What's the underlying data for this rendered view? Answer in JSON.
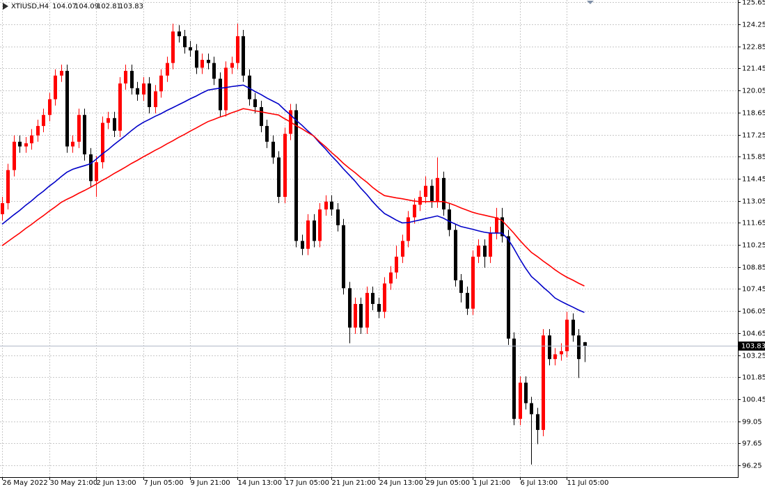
{
  "chart_data": {
    "type": "candlestick",
    "symbol": "XTIUSD,H4",
    "up_color": "#ff0000",
    "down_color": "#000000",
    "grid": true,
    "ylim": [
      95.5,
      125.8
    ],
    "yticks": [
      {
        "value": 125.65,
        "label": "125.65"
      },
      {
        "value": 124.25,
        "label": "124.25"
      },
      {
        "value": 122.85,
        "label": "122.85"
      },
      {
        "value": 121.45,
        "label": "121.45"
      },
      {
        "value": 120.05,
        "label": "120.05"
      },
      {
        "value": 118.65,
        "label": "118.65"
      },
      {
        "value": 117.25,
        "label": "117.25"
      },
      {
        "value": 115.85,
        "label": "115.85"
      },
      {
        "value": 114.45,
        "label": "114.45"
      },
      {
        "value": 113.05,
        "label": "113.05"
      },
      {
        "value": 111.65,
        "label": "111.65"
      },
      {
        "value": 110.25,
        "label": "110.25"
      },
      {
        "value": 108.85,
        "label": "108.85"
      },
      {
        "value": 107.45,
        "label": "107.45"
      },
      {
        "value": 106.05,
        "label": "106.05"
      },
      {
        "value": 104.65,
        "label": "104.65"
      },
      {
        "value": 103.25,
        "label": "103.25"
      },
      {
        "value": 101.85,
        "label": "101.85"
      },
      {
        "value": 100.45,
        "label": "100.45"
      },
      {
        "value": 99.05,
        "label": "99.05"
      },
      {
        "value": 97.65,
        "label": "97.65"
      },
      {
        "value": 96.25,
        "label": "96.25"
      }
    ],
    "categories": [
      "26 May 2022",
      null,
      null,
      null,
      null,
      null,
      null,
      null,
      "30 May 21:00",
      null,
      null,
      null,
      null,
      null,
      null,
      null,
      "2 Jun 13:00",
      null,
      null,
      null,
      null,
      null,
      null,
      null,
      "7 Jun 05:00",
      null,
      null,
      null,
      null,
      null,
      null,
      null,
      "9 Jun 21:00",
      null,
      null,
      null,
      null,
      null,
      null,
      null,
      "14 Jun 13:00",
      null,
      null,
      null,
      null,
      null,
      null,
      null,
      "17 Jun 05:00",
      null,
      null,
      null,
      null,
      null,
      null,
      null,
      "21 Jun 21:00",
      null,
      null,
      null,
      null,
      null,
      null,
      null,
      "24 Jun 13:00",
      null,
      null,
      null,
      null,
      null,
      null,
      null,
      "29 Jun 05:00",
      null,
      null,
      null,
      null,
      null,
      null,
      null,
      "1 Jul 21:00",
      null,
      null,
      null,
      null,
      null,
      null,
      null,
      "6 Jul 13:00",
      null,
      null,
      null,
      null,
      null,
      null,
      null,
      "11 Jul 05:00",
      null,
      null,
      null
    ],
    "open": [
      112.2,
      112.9,
      115.0,
      116.8,
      116.5,
      116.7,
      117.2,
      117.8,
      118.5,
      119.5,
      121.0,
      121.3,
      116.5,
      116.8,
      118.5,
      116.0,
      114.3,
      115.5,
      118.0,
      118.3,
      117.5,
      120.5,
      121.3,
      120.2,
      119.8,
      120.5,
      119.0,
      120.0,
      121.0,
      121.8,
      123.8,
      123.5,
      122.8,
      122.6,
      121.5,
      122.0,
      121.8,
      120.8,
      118.8,
      121.5,
      121.8,
      123.5,
      121.0,
      119.5,
      119.0,
      117.8,
      116.8,
      115.8,
      113.3,
      117.3,
      118.8,
      110.5,
      110.0,
      111.8,
      110.5,
      112.5,
      113.0,
      112.5,
      111.5,
      107.5,
      105.0,
      106.5,
      105.0,
      107.2,
      106.5,
      106.0,
      107.8,
      108.5,
      109.5,
      110.5,
      112.0,
      112.8,
      113.3,
      114.0,
      113.0,
      114.5,
      112.5,
      111.2,
      108.0,
      107.2,
      106.2,
      109.5,
      110.2,
      109.5,
      111.0,
      112.0,
      110.8,
      104.3,
      99.2,
      101.5,
      100.2,
      99.5,
      98.5,
      104.5,
      103.0,
      103.3,
      103.5,
      105.5,
      104.5,
      104.07
    ],
    "high": [
      113.3,
      115.4,
      117.2,
      117.2,
      117.1,
      117.6,
      118.2,
      118.9,
      119.9,
      121.4,
      121.7,
      121.7,
      117.2,
      118.9,
      118.9,
      116.4,
      115.9,
      118.4,
      118.7,
      118.7,
      120.9,
      121.7,
      121.7,
      120.6,
      120.9,
      120.9,
      120.4,
      121.4,
      122.2,
      124.3,
      124.2,
      123.9,
      123.2,
      123.0,
      122.4,
      122.4,
      122.2,
      121.2,
      121.9,
      122.2,
      124.3,
      123.9,
      121.4,
      119.9,
      119.4,
      118.2,
      117.2,
      116.2,
      117.7,
      119.2,
      119.2,
      110.9,
      112.2,
      112.2,
      112.9,
      113.4,
      113.4,
      112.9,
      111.9,
      107.9,
      106.9,
      106.9,
      107.6,
      107.6,
      106.9,
      108.2,
      108.9,
      110.2,
      110.9,
      112.4,
      113.2,
      113.7,
      114.6,
      114.4,
      115.8,
      114.9,
      112.9,
      111.6,
      108.4,
      107.6,
      109.9,
      110.6,
      110.6,
      111.4,
      112.6,
      112.6,
      111.2,
      104.7,
      101.9,
      101.9,
      100.6,
      99.9,
      104.9,
      104.9,
      103.7,
      104.0,
      106.0,
      105.9,
      104.9,
      104.09
    ],
    "low": [
      111.8,
      112.5,
      114.6,
      116.1,
      116.1,
      116.3,
      116.8,
      117.4,
      118.1,
      119.1,
      120.6,
      116.1,
      116.1,
      116.4,
      115.6,
      113.9,
      113.3,
      115.1,
      117.6,
      117.1,
      117.1,
      120.1,
      119.8,
      119.4,
      119.4,
      118.6,
      118.6,
      119.6,
      120.6,
      121.4,
      123.1,
      122.4,
      122.2,
      121.1,
      121.1,
      121.4,
      120.4,
      118.4,
      118.4,
      121.1,
      121.4,
      120.6,
      119.1,
      118.6,
      117.4,
      116.4,
      115.4,
      112.9,
      112.9,
      116.9,
      110.1,
      109.6,
      109.6,
      110.1,
      110.1,
      112.1,
      112.1,
      111.1,
      107.1,
      104.0,
      104.6,
      104.6,
      104.6,
      106.1,
      105.6,
      105.6,
      107.4,
      108.1,
      109.1,
      110.1,
      111.6,
      112.4,
      112.9,
      112.6,
      112.6,
      112.1,
      110.8,
      107.6,
      106.6,
      105.8,
      105.8,
      109.1,
      108.8,
      109.1,
      110.6,
      110.4,
      103.9,
      98.8,
      98.8,
      99.8,
      96.3,
      97.6,
      98.1,
      102.6,
      102.6,
      102.9,
      103.1,
      104.1,
      101.8,
      102.81
    ],
    "close": [
      112.9,
      115.0,
      116.8,
      116.5,
      116.7,
      117.2,
      117.8,
      118.5,
      119.5,
      121.0,
      121.3,
      116.5,
      116.8,
      118.5,
      116.0,
      114.3,
      115.5,
      118.0,
      118.3,
      117.5,
      120.5,
      121.3,
      120.2,
      119.8,
      120.5,
      119.0,
      120.0,
      121.0,
      121.8,
      123.8,
      123.5,
      122.8,
      122.6,
      121.5,
      122.0,
      121.8,
      120.8,
      118.8,
      121.5,
      121.8,
      123.5,
      121.0,
      119.5,
      119.0,
      117.8,
      116.8,
      115.8,
      113.3,
      117.3,
      118.8,
      110.5,
      110.0,
      111.8,
      110.5,
      112.5,
      113.0,
      112.5,
      111.5,
      107.5,
      105.0,
      106.5,
      105.0,
      107.2,
      106.5,
      106.0,
      107.8,
      108.5,
      109.5,
      110.5,
      112.0,
      112.8,
      113.3,
      114.0,
      113.0,
      114.5,
      112.5,
      111.2,
      108.0,
      107.2,
      106.2,
      109.5,
      110.2,
      109.5,
      111.0,
      112.0,
      110.8,
      104.3,
      99.2,
      101.5,
      100.2,
      99.5,
      98.5,
      104.5,
      103.0,
      103.3,
      103.5,
      105.5,
      104.5,
      103.0,
      103.83
    ],
    "series": [
      {
        "color": "#0000c8",
        "values": [
          111.56,
          111.86,
          112.16,
          112.44,
          112.76,
          113.05,
          113.37,
          113.65,
          113.97,
          114.25,
          114.57,
          114.86,
          115.05,
          115.17,
          115.28,
          115.4,
          115.69,
          116.01,
          116.29,
          116.61,
          116.9,
          117.19,
          117.51,
          117.79,
          118.03,
          118.21,
          118.41,
          118.58,
          118.78,
          118.96,
          119.15,
          119.33,
          119.53,
          119.7,
          119.9,
          120.08,
          120.14,
          120.2,
          120.24,
          120.3,
          120.35,
          120.4,
          120.21,
          119.99,
          119.8,
          119.58,
          119.39,
          119.2,
          118.84,
          118.52,
          118.16,
          117.84,
          117.48,
          117.15,
          116.72,
          116.34,
          115.9,
          115.52,
          115.09,
          114.7,
          114.3,
          113.85,
          113.45,
          113.0,
          112.6,
          112.24,
          112.04,
          111.83,
          111.65,
          111.66,
          111.75,
          111.83,
          111.92,
          112.0,
          112.09,
          111.95,
          111.75,
          111.58,
          111.42,
          111.33,
          111.24,
          111.14,
          111.05,
          111.0,
          111.0,
          111.0,
          110.63,
          110.03,
          109.37,
          108.77,
          108.24,
          107.92,
          107.56,
          107.24,
          106.88,
          106.67,
          106.48,
          106.31,
          106.12,
          105.96
        ]
      },
      {
        "color": "#ff0000",
        "values": [
          110.2,
          110.47,
          110.74,
          111.0,
          111.29,
          111.55,
          111.84,
          112.1,
          112.39,
          112.65,
          112.94,
          113.14,
          113.32,
          113.52,
          113.7,
          113.9,
          114.11,
          114.34,
          114.54,
          114.77,
          114.98,
          115.19,
          115.42,
          115.62,
          115.84,
          116.04,
          116.25,
          116.44,
          116.66,
          116.85,
          117.07,
          117.26,
          117.48,
          117.67,
          117.88,
          118.08,
          118.21,
          118.36,
          118.48,
          118.63,
          118.76,
          118.9,
          118.84,
          118.76,
          118.7,
          118.63,
          118.56,
          118.5,
          118.27,
          118.06,
          117.82,
          117.62,
          117.38,
          117.16,
          116.8,
          116.48,
          116.12,
          115.8,
          115.44,
          115.13,
          114.84,
          114.52,
          114.23,
          113.9,
          113.62,
          113.38,
          113.31,
          113.24,
          113.18,
          113.11,
          113.04,
          113.0,
          113.0,
          113.0,
          113.0,
          113.0,
          112.9,
          112.76,
          112.6,
          112.46,
          112.32,
          112.22,
          112.14,
          112.05,
          111.97,
          111.8,
          111.4,
          111.0,
          110.55,
          110.15,
          109.77,
          109.51,
          109.22,
          108.96,
          108.67,
          108.42,
          108.2,
          108.02,
          107.82,
          107.64
        ]
      }
    ]
  }
}
